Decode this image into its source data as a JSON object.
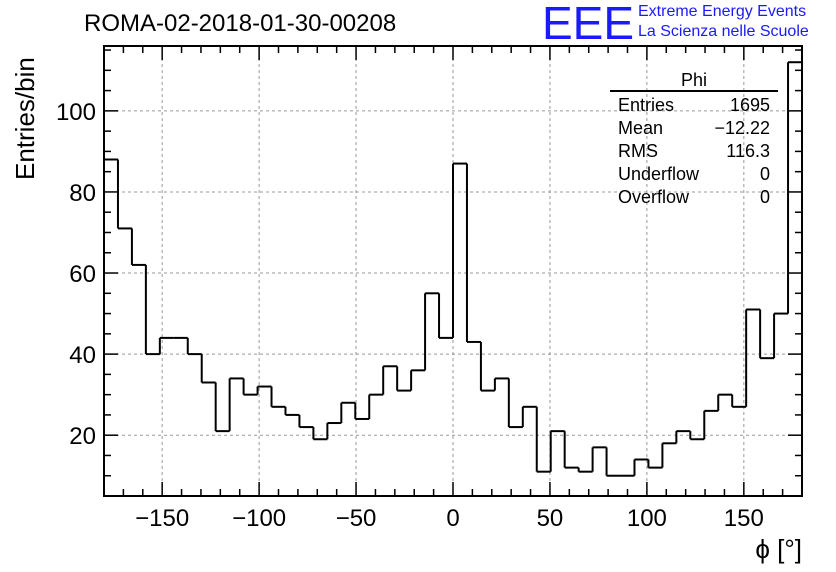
{
  "header": {
    "title": "ROMA-02-2018-01-30-00208",
    "logo": "EEE",
    "logo_line1": "Extreme Energy Events",
    "logo_line2": "La Scienza nelle Scuole"
  },
  "stats_box": {
    "title": "Phi",
    "rows": [
      {
        "label": "Entries",
        "value": "1695"
      },
      {
        "label": "Mean",
        "value": "−12.22"
      },
      {
        "label": "RMS",
        "value": "116.3"
      },
      {
        "label": "Underflow",
        "value": "0"
      },
      {
        "label": "Overflow",
        "value": "0"
      }
    ]
  },
  "chart_data": {
    "type": "histogram",
    "title": "ROMA-02-2018-01-30-00208",
    "xlabel": "ϕ [°]",
    "ylabel": "Entries/bin",
    "xlim": [
      -180,
      180
    ],
    "ylim": [
      5,
      116
    ],
    "bin_width": 7.2,
    "x_ticks": [
      -150,
      -100,
      -50,
      0,
      50,
      100,
      150
    ],
    "x_tick_labels": [
      "−150",
      "−100",
      "−50",
      "0",
      "50",
      "100",
      "150"
    ],
    "y_ticks": [
      20,
      40,
      60,
      80,
      100
    ],
    "y_tick_labels": [
      "20",
      "40",
      "60",
      "80",
      "100"
    ],
    "grid": true,
    "values": [
      88,
      71,
      62,
      40,
      44,
      44,
      40,
      33,
      21,
      34,
      30,
      32,
      27,
      25,
      22,
      19,
      23,
      28,
      24,
      30,
      37,
      31,
      36,
      55,
      44,
      87,
      43,
      31,
      34,
      22,
      27,
      11,
      21,
      12,
      11,
      17,
      10,
      10,
      14,
      12,
      18,
      21,
      19,
      26,
      30,
      27,
      51,
      39,
      50,
      112
    ]
  }
}
